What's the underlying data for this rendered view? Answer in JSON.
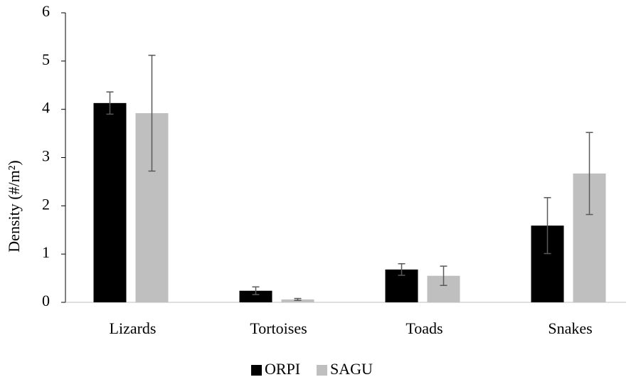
{
  "chart_data": {
    "type": "bar",
    "y_label": "Density (#/m²)",
    "categories": [
      "Lizards",
      "Tortoises",
      "Toads",
      "Snakes"
    ],
    "series": [
      {
        "name": "ORPI",
        "color": "#000000",
        "values": [
          4.13,
          0.24,
          0.68,
          1.59
        ],
        "errors": [
          0.23,
          0.08,
          0.12,
          0.58
        ]
      },
      {
        "name": "SAGU",
        "color": "#bfbfbf",
        "values": [
          3.92,
          0.06,
          0.55,
          2.67
        ],
        "errors": [
          1.2,
          0.02,
          0.2,
          0.85
        ]
      }
    ],
    "ylim": [
      0,
      6
    ],
    "yticks": [
      0,
      1,
      2,
      3,
      4,
      5,
      6
    ],
    "grid": false,
    "legend": "bottom"
  }
}
